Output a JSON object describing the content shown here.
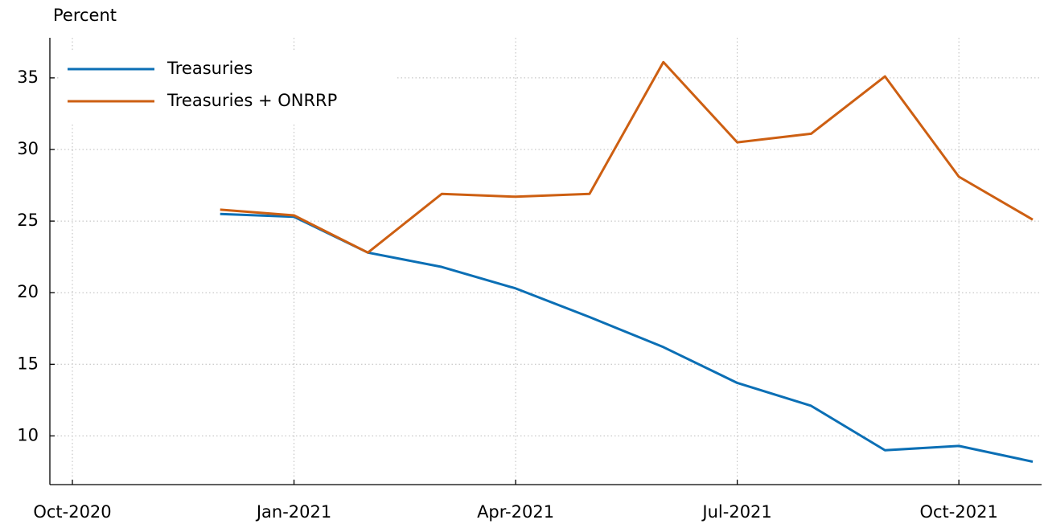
{
  "chart_data": {
    "type": "line",
    "y_label": "Percent",
    "x": [
      "2020-12",
      "2021-01",
      "2021-02",
      "2021-03",
      "2021-04",
      "2021-05",
      "2021-06",
      "2021-07",
      "2021-08",
      "2021-09",
      "2021-10",
      "2021-11"
    ],
    "series": [
      {
        "name": "Treasuries",
        "color": "#0b6fb5",
        "values": [
          25.5,
          25.3,
          22.8,
          21.8,
          20.3,
          18.3,
          16.2,
          13.7,
          12.1,
          9.0,
          9.3,
          8.2
        ]
      },
      {
        "name": "Treasuries + ONRRP",
        "color": "#cd5f12",
        "values": [
          25.8,
          25.4,
          22.8,
          26.9,
          26.7,
          26.9,
          36.1,
          30.5,
          31.1,
          35.1,
          28.1,
          25.1
        ]
      }
    ],
    "xlim": [
      "2020-10",
      "2021-11"
    ],
    "xticks": [
      {
        "value": "2020-10",
        "label": "Oct-2020"
      },
      {
        "value": "2021-01",
        "label": "Jan-2021"
      },
      {
        "value": "2021-04",
        "label": "Apr-2021"
      },
      {
        "value": "2021-07",
        "label": "Jul-2021"
      },
      {
        "value": "2021-10",
        "label": "Oct-2021"
      }
    ],
    "ylim": [
      6.6,
      37.8
    ],
    "yticks": [
      10,
      15,
      20,
      25,
      30,
      35
    ],
    "grid": true,
    "legend": "upper left"
  }
}
